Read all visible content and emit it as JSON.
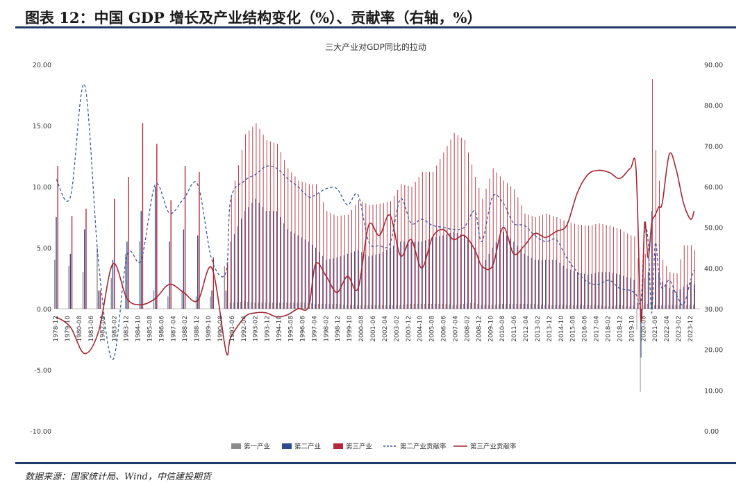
{
  "figure_title": "图表 12：中国 GDP 增长及产业结构变化（%）、贡献率（右轴，%）",
  "source": "数据来源：国家统计局、Wind，中信建投期货",
  "chart_data": {
    "type": "bar",
    "title": "三大产业对GDP同比的拉动",
    "xlabel": "",
    "ylabel": "",
    "ylim": [
      -10,
      20
    ],
    "y2lim": [
      0,
      90
    ],
    "y_ticks": [
      "20.00",
      "15.00",
      "10.00",
      "5.00",
      "0.00",
      "-5.00",
      "-10.00"
    ],
    "y2_ticks": [
      "90.00",
      "80.00",
      "70.00",
      "60.00",
      "50.00",
      "40.00",
      "30.00",
      "20.00",
      "10.00",
      "0.00"
    ],
    "x_ticks": [
      "1978-12",
      "1979-10",
      "1980-08",
      "1981-06",
      "1982-04",
      "1983-02",
      "1983-12",
      "1984-10",
      "1985-08",
      "1986-06",
      "1987-04",
      "1988-02",
      "1988-12",
      "1989-10",
      "1990-08",
      "1991-06",
      "1992-04",
      "1993-02",
      "1993-12",
      "1994-10",
      "1995-08",
      "1996-06",
      "1997-04",
      "1998-02",
      "1998-12",
      "1999-10",
      "2000-08",
      "2001-06",
      "2002-04",
      "2003-02",
      "2003-12",
      "2004-10",
      "2005-08",
      "2006-06",
      "2007-04",
      "2008-02",
      "2008-12",
      "2009-10",
      "2010-08",
      "2011-06",
      "2012-04",
      "2013-02",
      "2013-12",
      "2014-10",
      "2015-08",
      "2016-06",
      "2017-04",
      "2018-02",
      "2018-12",
      "2019-10",
      "2020-08",
      "2021-06",
      "2022-04",
      "2023-02",
      "2023-12"
    ],
    "legend": [
      "第一产业",
      "第二产业",
      "第三产业",
      "第二产业贡献率",
      "第三产业贡献率"
    ],
    "legend_position": "bottom",
    "colors": {
      "primary": "#8c8c8c",
      "secondary": "#2f4a8c",
      "tertiary": "#b22a3a",
      "sec_rate": "#3a5a9a",
      "ter_rate": "#a52535"
    },
    "annual": {
      "x": [
        1978,
        1979,
        1980,
        1981,
        1982,
        1983,
        1984,
        1985,
        1986,
        1987,
        1988,
        1989,
        1990
      ],
      "primary": [
        4.0,
        3.5,
        3.0,
        5.0,
        2.5,
        4.5,
        5.5,
        1.5,
        1.0,
        1.5,
        1.0,
        1.0,
        3.5
      ],
      "secondary": [
        7.5,
        4.5,
        6.5,
        1.5,
        4.0,
        5.5,
        8.0,
        10.0,
        5.5,
        6.5,
        6.0,
        1.5,
        1.5
      ],
      "tertiary": [
        11.7,
        7.6,
        8.2,
        1.5,
        9.0,
        10.8,
        15.2,
        13.5,
        8.9,
        11.7,
        11.2,
        4.2,
        3.8
      ],
      "sec_rate": [
        61.8,
        57.5,
        85.0,
        41.0,
        17.5,
        43.0,
        42.0,
        60.5,
        53.5,
        57.0,
        60.5,
        42.0,
        39.0
      ],
      "ter_rate": [
        28.0,
        25.5,
        19.0,
        24.5,
        41.0,
        32.5,
        31.0,
        32.5,
        36.0,
        34.0,
        32.0,
        40.0,
        19.5
      ]
    },
    "quarterly_anchors": {
      "t": [
        1991.25,
        1992.25,
        1993.0,
        1993.75,
        1994.5,
        1995.25,
        1996.0,
        1996.75,
        1997.25,
        1998.0,
        1998.75,
        1999.5,
        2000.25,
        2001.0,
        2001.75,
        2002.5,
        2003.25,
        2004.0,
        2004.75,
        2005.5,
        2006.25,
        2007.0,
        2007.75,
        2008.5,
        2009.0,
        2009.75,
        2010.5,
        2011.25,
        2012.0,
        2012.75,
        2013.5,
        2014.25,
        2015.0,
        2015.75,
        2016.5,
        2017.25,
        2018.0,
        2018.75,
        2019.5,
        2019.9,
        2020.25,
        2020.5,
        2020.75,
        2021.0,
        2021.25,
        2021.5,
        2021.75,
        2022.25,
        2022.75,
        2023.25,
        2023.75,
        2024.0
      ],
      "primary": [
        0.5,
        0.6,
        0.5,
        0.5,
        0.5,
        0.5,
        0.5,
        0.5,
        0.4,
        0.4,
        0.4,
        0.3,
        0.3,
        0.3,
        0.3,
        0.3,
        0.3,
        0.4,
        0.4,
        0.4,
        0.4,
        0.3,
        0.4,
        0.5,
        0.3,
        0.3,
        0.4,
        0.4,
        0.4,
        0.4,
        0.3,
        0.3,
        0.3,
        0.3,
        0.3,
        0.3,
        0.2,
        0.3,
        0.2,
        0.3,
        -6.8,
        0.3,
        0.4,
        0.5,
        0.3,
        0.3,
        0.3,
        0.3,
        0.3,
        0.3,
        0.3,
        0.3
      ],
      "secondary": [
        5.5,
        8.0,
        9.0,
        8.0,
        8.0,
        6.5,
        6.0,
        5.5,
        5.0,
        4.0,
        4.2,
        4.5,
        4.8,
        4.3,
        4.5,
        5.0,
        5.5,
        5.5,
        5.5,
        5.8,
        6.0,
        6.3,
        6.0,
        5.0,
        3.5,
        5.0,
        6.3,
        5.5,
        4.5,
        4.0,
        4.0,
        4.0,
        3.3,
        3.0,
        2.8,
        3.0,
        3.0,
        2.8,
        2.5,
        2.3,
        -4.0,
        2.5,
        3.0,
        8.0,
        4.5,
        3.0,
        2.2,
        1.7,
        1.4,
        1.8,
        2.2,
        2.0
      ],
      "tertiary": [
        9.2,
        14.3,
        15.2,
        13.8,
        13.5,
        11.5,
        10.5,
        10.2,
        10.2,
        8.0,
        7.6,
        7.7,
        8.9,
        8.5,
        8.6,
        8.8,
        10.2,
        10.0,
        11.2,
        11.2,
        12.8,
        14.4,
        13.8,
        10.8,
        9.0,
        11.5,
        10.5,
        9.8,
        7.8,
        7.5,
        7.8,
        7.5,
        7.1,
        6.9,
        6.8,
        7.0,
        6.8,
        6.5,
        6.0,
        5.9,
        -0.2,
        4.5,
        5.0,
        18.8,
        13.0,
        10.5,
        4.0,
        3.0,
        2.9,
        5.2,
        5.2,
        4.8
      ],
      "sec_rate": [
        57.0,
        61.5,
        63.0,
        65.0,
        64.5,
        62.0,
        60.0,
        57.5,
        58.0,
        59.5,
        59.5,
        55.5,
        58.0,
        46.5,
        45.5,
        46.0,
        57.0,
        51.0,
        52.0,
        50.5,
        50.0,
        49.5,
        50.0,
        54.0,
        46.5,
        57.5,
        56.0,
        51.0,
        50.5,
        48.0,
        46.5,
        47.0,
        42.5,
        39.0,
        36.5,
        36.0,
        37.0,
        35.0,
        34.5,
        33.5,
        32.0,
        49.0,
        46.5,
        29.0,
        46.0,
        39.0,
        35.0,
        37.0,
        33.5,
        31.0,
        37.0,
        39.5
      ],
      "ter_rate": [
        23.0,
        28.0,
        29.0,
        29.0,
        28.0,
        28.5,
        30.0,
        30.5,
        41.0,
        38.0,
        34.0,
        38.0,
        35.0,
        50.5,
        48.0,
        53.0,
        43.0,
        47.0,
        40.0,
        47.5,
        49.5,
        47.0,
        48.0,
        44.5,
        40.5,
        40.5,
        50.0,
        43.5,
        45.5,
        48.5,
        47.5,
        49.0,
        50.5,
        58.5,
        63.0,
        64.0,
        63.5,
        62.0,
        64.5,
        64.0,
        27.0,
        51.0,
        42.5,
        51.0,
        53.0,
        55.0,
        56.0,
        68.0,
        64.0,
        56.0,
        52.0,
        54.0
      ]
    }
  }
}
